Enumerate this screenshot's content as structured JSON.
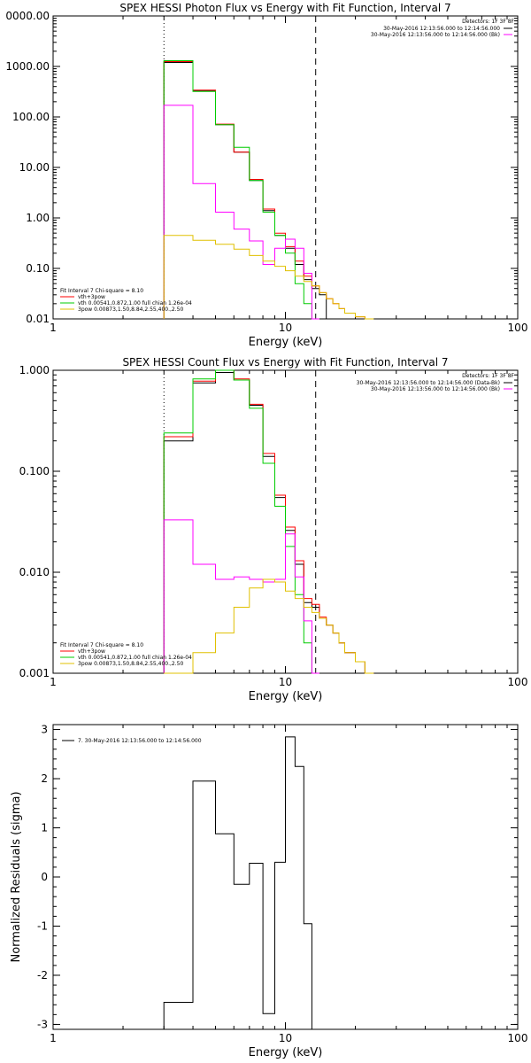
{
  "chart_data": [
    {
      "type": "line",
      "title": "SPEX HESSI Photon Flux vs Energy with Fit Function, Interval 7",
      "xlabel": "Energy (keV)",
      "ylabel": "",
      "xscale": "log",
      "yscale": "log",
      "xlim": [
        1,
        100
      ],
      "ylim": [
        0.01,
        10000
      ],
      "xticks": [
        "1",
        "10",
        "100"
      ],
      "yticks": [
        "0.01",
        "0.10",
        "1.00",
        "10.00",
        "100.00",
        "1000.00",
        "0000.00"
      ],
      "vlines": [
        {
          "x": 3.0,
          "style": "dotted"
        },
        {
          "x": 13.5,
          "style": "dashed"
        }
      ],
      "detectors": "Detectors: 1F 3F 8F",
      "legend_right": [
        {
          "name": "30-May-2016 12:13:56.000 to 12:14:56.000",
          "color": "#000000"
        },
        {
          "name": "30-May-2016 12:13:56.000 to 12:14:56.000 (Bk)",
          "color": "#ff00ff"
        }
      ],
      "legend_left": [
        {
          "name": "Fit Interval 7  Chi-square = 8.10",
          "color": "#000000"
        },
        {
          "name": "vth+3pow",
          "color": "#ff0000"
        },
        {
          "name": "vth 0.00541,0.872,1.00  full chian 1.26e-04",
          "color": "#00cc00"
        },
        {
          "name": "3pow 0.00873,1.50,8.84,2.55,400.,2.50",
          "color": "#e0c000"
        }
      ],
      "edges": [
        3.0,
        4.0,
        5.0,
        6.0,
        7.0,
        8.0,
        9.0,
        10.0,
        11.0,
        12.0,
        13.0,
        14.0,
        15.0,
        16.0,
        17.0,
        18.0,
        20.0,
        22.0,
        24.0
      ],
      "series": [
        {
          "name": "",
          "color": "#000000",
          "values": [
            1200,
            330,
            70,
            20,
            5.5,
            1.4,
            0.45,
            0.25,
            0.12,
            0.06,
            0.04,
            0.03,
            null,
            null,
            null,
            null,
            null,
            null
          ]
        },
        {
          "name": "vth+3pow",
          "color": "#ff0000",
          "values": [
            1250,
            340,
            72,
            20,
            5.8,
            1.5,
            0.5,
            0.27,
            0.14,
            0.07,
            0.045,
            0.033,
            0.025,
            0.02,
            0.016,
            0.013,
            0.011,
            null
          ]
        },
        {
          "name": "vth",
          "color": "#00cc00",
          "values": [
            1300,
            320,
            70,
            25,
            5.5,
            1.3,
            0.45,
            0.2,
            0.05,
            0.02,
            0.008,
            null,
            null,
            null,
            null,
            null,
            null,
            null
          ]
        },
        {
          "name": "Bk",
          "color": "#ff00ff",
          "values": [
            170,
            4.8,
            1.3,
            0.6,
            0.35,
            0.12,
            0.25,
            0.38,
            0.25,
            0.08,
            0.008,
            null,
            null,
            null,
            null,
            null,
            null,
            null
          ]
        },
        {
          "name": "3pow",
          "color": "#e0c000",
          "values": [
            0.45,
            0.36,
            0.3,
            0.24,
            0.18,
            0.14,
            0.11,
            0.09,
            0.07,
            0.055,
            0.045,
            0.033,
            0.025,
            0.02,
            0.016,
            0.013,
            0.011,
            0.009
          ]
        }
      ]
    },
    {
      "type": "line",
      "title": "SPEX HESSI Count Flux vs Energy with Fit Function, Interval 7",
      "xlabel": "Energy (keV)",
      "ylabel": "",
      "xscale": "log",
      "yscale": "log",
      "xlim": [
        1,
        100
      ],
      "ylim": [
        0.001,
        1.0
      ],
      "xticks": [
        "1",
        "10",
        "100"
      ],
      "yticks": [
        "0.001",
        "0.010",
        "0.100",
        "1.000"
      ],
      "vlines": [
        {
          "x": 3.0,
          "style": "dotted"
        },
        {
          "x": 13.5,
          "style": "dashed"
        }
      ],
      "detectors": "Detectors: 1F 3F 8F",
      "legend_right": [
        {
          "name": "30-May-2016 12:13:56.000 to 12:14:56.000 (Data-Bk)",
          "color": "#000000"
        },
        {
          "name": "30-May-2016 12:13:56.000 to 12:14:56.000 (Bk)",
          "color": "#ff00ff"
        }
      ],
      "legend_left": [
        {
          "name": "Fit Interval 7  Chi-square = 8.10",
          "color": "#000000"
        },
        {
          "name": "vth+3pow",
          "color": "#ff0000"
        },
        {
          "name": "vth 0.00541,0.872,1.00  full chian 1.26e-04",
          "color": "#00cc00"
        },
        {
          "name": "3pow 0.00873,1.50,8.84,2.55,400.,2.50",
          "color": "#e0c000"
        }
      ],
      "edges": [
        3.0,
        4.0,
        5.0,
        6.0,
        7.0,
        8.0,
        9.0,
        10.0,
        11.0,
        12.0,
        13.0,
        14.0,
        15.0,
        16.0,
        17.0,
        18.0,
        20.0,
        22.0,
        24.0
      ],
      "series": [
        {
          "name": "",
          "color": "#000000",
          "values": [
            0.2,
            0.75,
            0.95,
            0.8,
            0.45,
            0.14,
            0.055,
            0.026,
            0.012,
            0.005,
            0.0045,
            0.0035,
            0.003,
            0.0025,
            0.002,
            0.0016,
            0.0013,
            0.001
          ]
        },
        {
          "name": "vth+3pow",
          "color": "#ff0000",
          "values": [
            0.22,
            0.78,
            1.0,
            0.82,
            0.46,
            0.15,
            0.058,
            0.028,
            0.013,
            0.0055,
            0.0048,
            0.0036,
            0.003,
            0.0025,
            0.002,
            0.0016,
            0.0013,
            0.001
          ]
        },
        {
          "name": "vth",
          "color": "#00cc00",
          "values": [
            0.24,
            0.82,
            1.05,
            0.8,
            0.42,
            0.12,
            0.045,
            0.018,
            0.006,
            0.002,
            0.001,
            null,
            null,
            null,
            null,
            null,
            null,
            null
          ]
        },
        {
          "name": "Bk",
          "color": "#ff00ff",
          "values": [
            0.033,
            0.012,
            0.0085,
            0.009,
            0.0085,
            0.008,
            0.0085,
            0.024,
            0.009,
            0.0033,
            0.001,
            null,
            null,
            null,
            null,
            null,
            null,
            null
          ]
        },
        {
          "name": "3pow",
          "color": "#e0c000",
          "values": [
            0.001,
            0.0016,
            0.0025,
            0.0045,
            0.007,
            0.0085,
            0.008,
            0.0065,
            0.0055,
            0.0045,
            0.004,
            0.0035,
            0.003,
            0.0025,
            0.002,
            0.0016,
            0.0013,
            0.001
          ]
        }
      ]
    },
    {
      "type": "line",
      "title": "",
      "xlabel": "Energy (keV)",
      "ylabel": "Normalized Residuals (sigma)",
      "xscale": "log",
      "yscale": "linear",
      "xlim": [
        1,
        100
      ],
      "ylim": [
        -3.1,
        3.1
      ],
      "xticks": [
        "1",
        "10",
        "100"
      ],
      "yticks": [
        "-3",
        "-2",
        "-1",
        "0",
        "1",
        "2",
        "3"
      ],
      "legend": [
        {
          "name": "7. 30-May-2016 12:13:56.000 to 12:14:56.000",
          "color": "#000000"
        }
      ],
      "edges": [
        3.0,
        4.0,
        5.0,
        6.0,
        7.0,
        8.0,
        9.0,
        10.0,
        11.0,
        12.0,
        13.0
      ],
      "series": [
        {
          "name": "",
          "color": "#000000",
          "values": [
            -2.55,
            1.95,
            0.88,
            -0.15,
            0.28,
            -2.78,
            0.3,
            2.85,
            2.25,
            -0.95
          ]
        }
      ]
    }
  ]
}
